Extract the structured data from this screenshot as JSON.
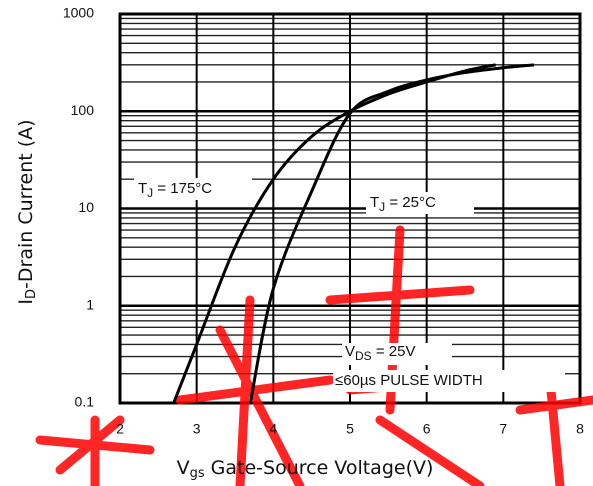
{
  "chart_data": {
    "type": "line",
    "x_label": {
      "main": "V",
      "sub": "gs",
      "rest": " Gate-Source Voltage(V)"
    },
    "y_label": {
      "main": "I",
      "sub": "D",
      "rest": "-Drain Current (A)"
    },
    "xlim": [
      2,
      8
    ],
    "xticks": [
      2,
      3,
      4,
      5,
      6,
      7,
      8
    ],
    "ylim": [
      0.1,
      1000
    ],
    "yticks": [
      0.1,
      1,
      10,
      100,
      1000
    ],
    "log_y": true,
    "grid": true,
    "color": "#000000",
    "series": [
      {
        "name": {
          "main": "T",
          "sub": "J",
          "rest": " = 175°C"
        },
        "x": [
          2.7,
          3,
          3.5,
          4,
          4.5,
          5,
          5.5,
          6,
          6.5,
          6.9
        ],
        "values": [
          0.1,
          0.4,
          4,
          20,
          55,
          100,
          150,
          200,
          260,
          300
        ]
      },
      {
        "name": {
          "main": "T",
          "sub": "J",
          "rest": " = 25°C"
        },
        "x": [
          3.7,
          4,
          4.5,
          5,
          5.5,
          6,
          6.5,
          7,
          7.4
        ],
        "values": [
          0.1,
          1.5,
          15,
          95,
          160,
          210,
          250,
          280,
          300
        ]
      }
    ],
    "notes": [
      {
        "main": "V",
        "sub": "DS",
        "rest": " = 25V"
      },
      {
        "text": "≤60µs PULSE WIDTH"
      }
    ]
  }
}
